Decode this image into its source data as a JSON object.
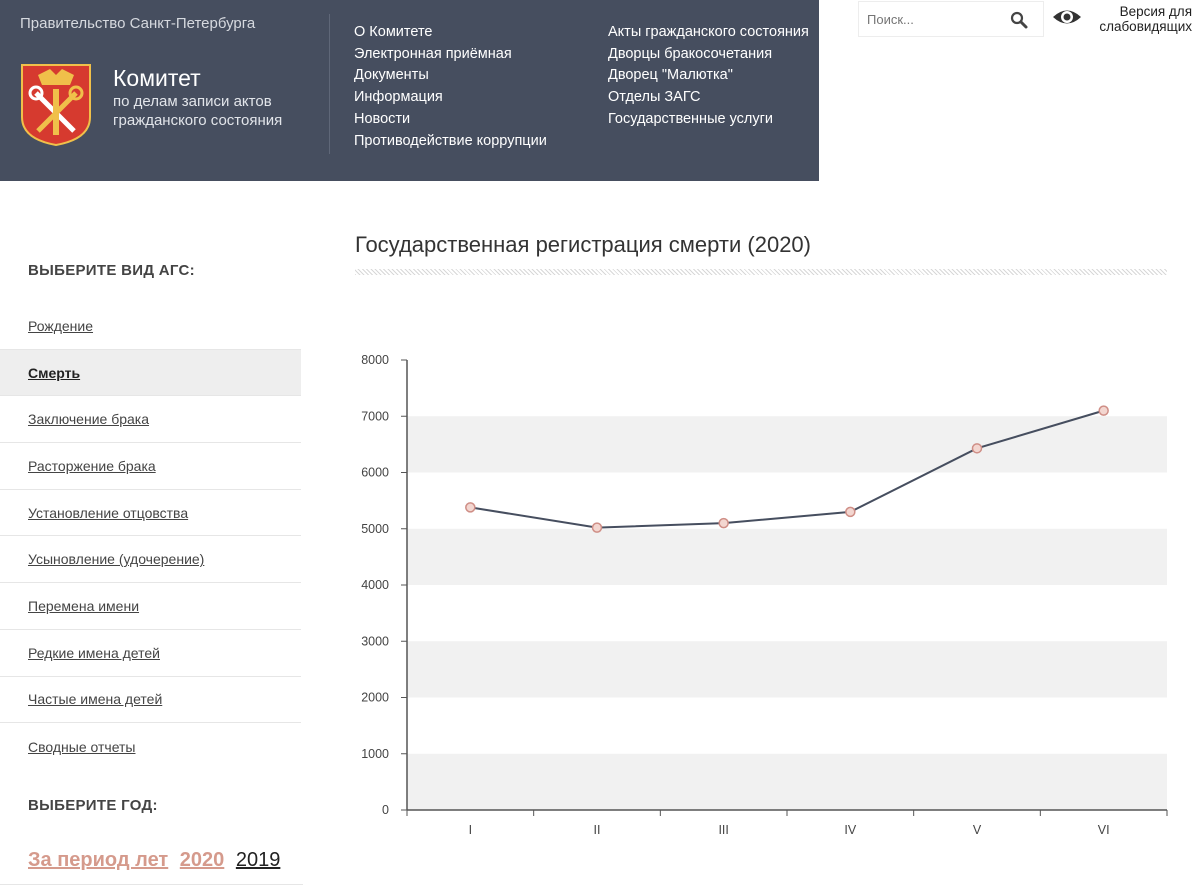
{
  "header": {
    "gov_link": "Правительство Санкт-Петербурга",
    "title": "Комитет",
    "subtitle": "по делам записи актов гражданского состояния",
    "colors": {
      "background": "#464e5f"
    },
    "nav_col1": [
      "О Комитете",
      "Электронная приёмная",
      "Документы",
      "Информация",
      "Новости",
      "Противодействие коррупции"
    ],
    "nav_col2": [
      "Акты гражданского состояния",
      "Дворцы бракосочетания",
      "Дворец \"Малютка\"",
      "Отделы ЗАГС",
      "Государственные услуги"
    ]
  },
  "tools": {
    "search_placeholder": "Поиск...",
    "low_vision_label": "Версия для слабовидящих",
    "search_icon": "search-icon",
    "eye_icon": "eye-icon"
  },
  "sidebar": {
    "heading_type": "ВЫБЕРИТЕ ВИД АГС:",
    "items": [
      "Рождение",
      "Смерть",
      "Заключение брака",
      "Расторжение брака",
      "Установление отцовства",
      "Усыновление (удочерение)",
      "Перемена имени",
      "Редкие имена детей",
      "Частые имена детей",
      "Сводные отчеты"
    ],
    "active_index": 1,
    "heading_year": "ВЫБЕРИТЕ ГОД:",
    "period_label": "За период лет",
    "year_selected": "2020",
    "year_other": "2019",
    "colors": {
      "accent": "#d59a8c"
    }
  },
  "main": {
    "title": "Государственная регистрация смерти (2020)"
  },
  "chart_data": {
    "type": "line",
    "title": "Государственная регистрация смерти (2020)",
    "categories": [
      "I",
      "II",
      "III",
      "IV",
      "V",
      "VI"
    ],
    "values": [
      5380,
      5020,
      5100,
      5300,
      6430,
      7100
    ],
    "ylim": [
      0,
      8000
    ],
    "yticks": [
      "0",
      "1000",
      "2000",
      "3000",
      "4000",
      "5000",
      "6000",
      "7000",
      "8000"
    ],
    "xlabel": "",
    "ylabel": "",
    "colors": {
      "line": "#464e5f",
      "marker_fill": "#f3d6d0",
      "marker_stroke": "#cf8e86",
      "band": "#f1f1f1"
    }
  }
}
